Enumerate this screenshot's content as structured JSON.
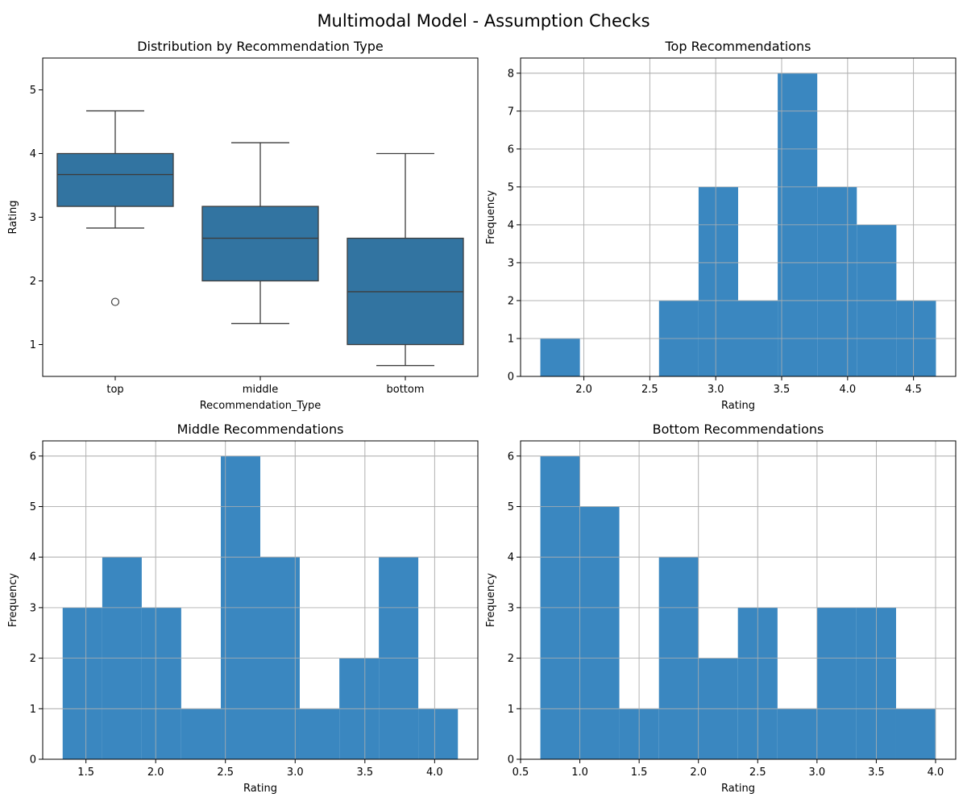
{
  "figure": {
    "title": "Multimodal Model - Assumption Checks"
  },
  "chart_data": [
    {
      "type": "box",
      "title": "Distribution by Recommendation Type",
      "xlabel": "Recommendation_Type",
      "ylabel": "Rating",
      "categories": [
        "top",
        "middle",
        "bottom"
      ],
      "boxes": [
        {
          "whisker_low": 2.83,
          "q1": 3.17,
          "median": 3.67,
          "q3": 4.0,
          "whisker_high": 4.67,
          "outliers": [
            1.67
          ]
        },
        {
          "whisker_low": 1.33,
          "q1": 2.0,
          "median": 2.67,
          "q3": 3.17,
          "whisker_high": 4.17,
          "outliers": []
        },
        {
          "whisker_low": 0.67,
          "q1": 1.0,
          "median": 1.83,
          "q3": 2.67,
          "whisker_high": 4.0,
          "outliers": []
        }
      ],
      "ylim": [
        0.5,
        5.5
      ],
      "yticks": [
        1,
        2,
        3,
        4,
        5
      ],
      "color": "#3274a1",
      "grid": false
    },
    {
      "type": "bar",
      "title": "Top Recommendations",
      "xlabel": "Rating",
      "ylabel": "Frequency",
      "bin_edges": [
        1.67,
        1.97,
        2.27,
        2.57,
        2.87,
        3.17,
        3.47,
        3.77,
        4.07,
        4.37,
        4.67
      ],
      "counts": [
        1,
        0,
        0,
        2,
        5,
        2,
        8,
        5,
        4,
        2
      ],
      "xlim": [
        1.52,
        4.82
      ],
      "ylim": [
        0,
        8.4
      ],
      "xticks": [
        "2.0",
        "2.5",
        "3.0",
        "3.5",
        "4.0",
        "4.5"
      ],
      "yticks": [
        "0",
        "1",
        "2",
        "3",
        "4",
        "5",
        "6",
        "7",
        "8"
      ],
      "color": "#3a87c0",
      "grid": true
    },
    {
      "type": "bar",
      "title": "Middle Recommendations",
      "xlabel": "Rating",
      "ylabel": "Frequency",
      "bin_edges": [
        1.333,
        1.617,
        1.9,
        2.183,
        2.467,
        2.75,
        3.033,
        3.317,
        3.6,
        3.883,
        4.167
      ],
      "counts": [
        3,
        4,
        3,
        1,
        6,
        4,
        1,
        2,
        4,
        1
      ],
      "xlim": [
        1.19,
        4.31
      ],
      "ylim": [
        0,
        6.3
      ],
      "xticks": [
        "1.5",
        "2.0",
        "2.5",
        "3.0",
        "3.5",
        "4.0"
      ],
      "yticks": [
        "0",
        "1",
        "2",
        "3",
        "4",
        "5",
        "6"
      ],
      "color": "#3a87c0",
      "grid": true
    },
    {
      "type": "bar",
      "title": "Bottom Recommendations",
      "xlabel": "Rating",
      "ylabel": "Frequency",
      "bin_edges": [
        0.667,
        1.0,
        1.333,
        1.667,
        2.0,
        2.333,
        2.667,
        3.0,
        3.333,
        3.667,
        4.0
      ],
      "counts": [
        6,
        5,
        1,
        4,
        2,
        3,
        1,
        3,
        3,
        1
      ],
      "xlim": [
        0.5,
        4.17
      ],
      "ylim": [
        0,
        6.3
      ],
      "xticks": [
        "0.5",
        "1.0",
        "1.5",
        "2.0",
        "2.5",
        "3.0",
        "3.5",
        "4.0"
      ],
      "yticks": [
        "0",
        "1",
        "2",
        "3",
        "4",
        "5",
        "6"
      ],
      "color": "#3a87c0",
      "grid": true
    }
  ]
}
